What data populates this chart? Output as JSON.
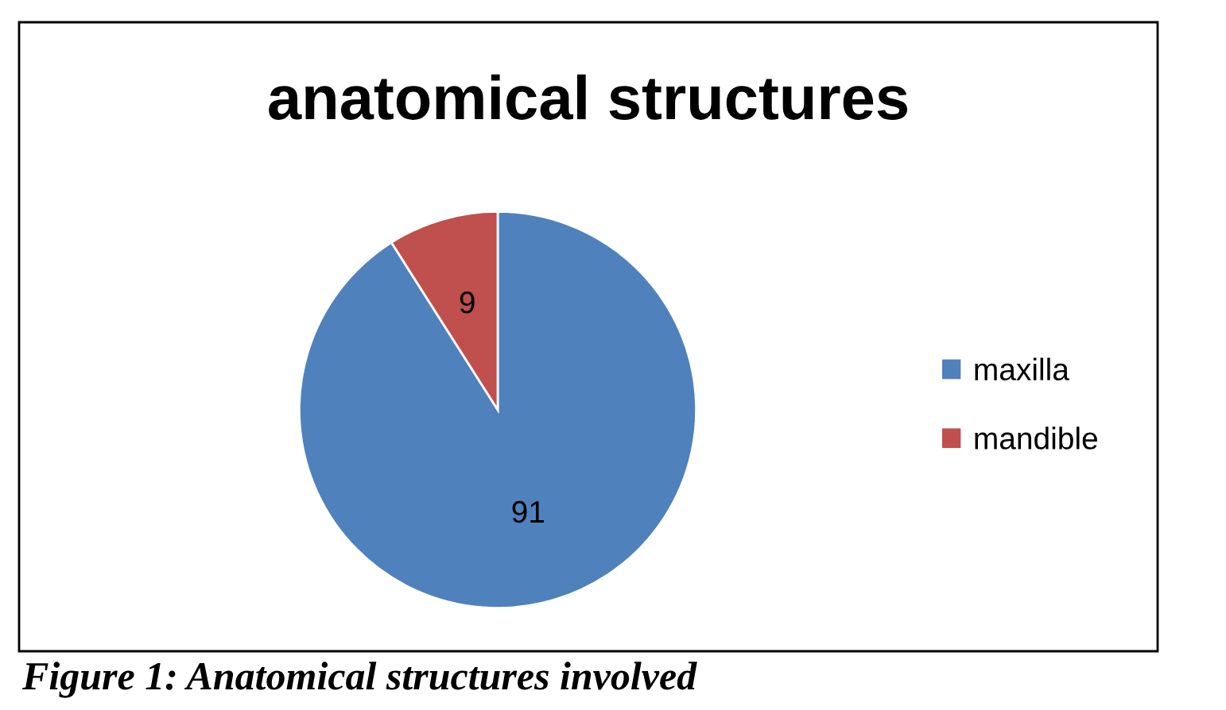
{
  "chart_data": {
    "type": "pie",
    "title": "anatomical structures",
    "categories": [
      "maxilla",
      "mandible"
    ],
    "values": [
      91,
      9
    ],
    "colors": [
      "#4f81bd",
      "#c0504d"
    ],
    "data_labels": true,
    "legend": "right",
    "annotations": [
      "Figure 1: Anatomical structures involved"
    ]
  }
}
